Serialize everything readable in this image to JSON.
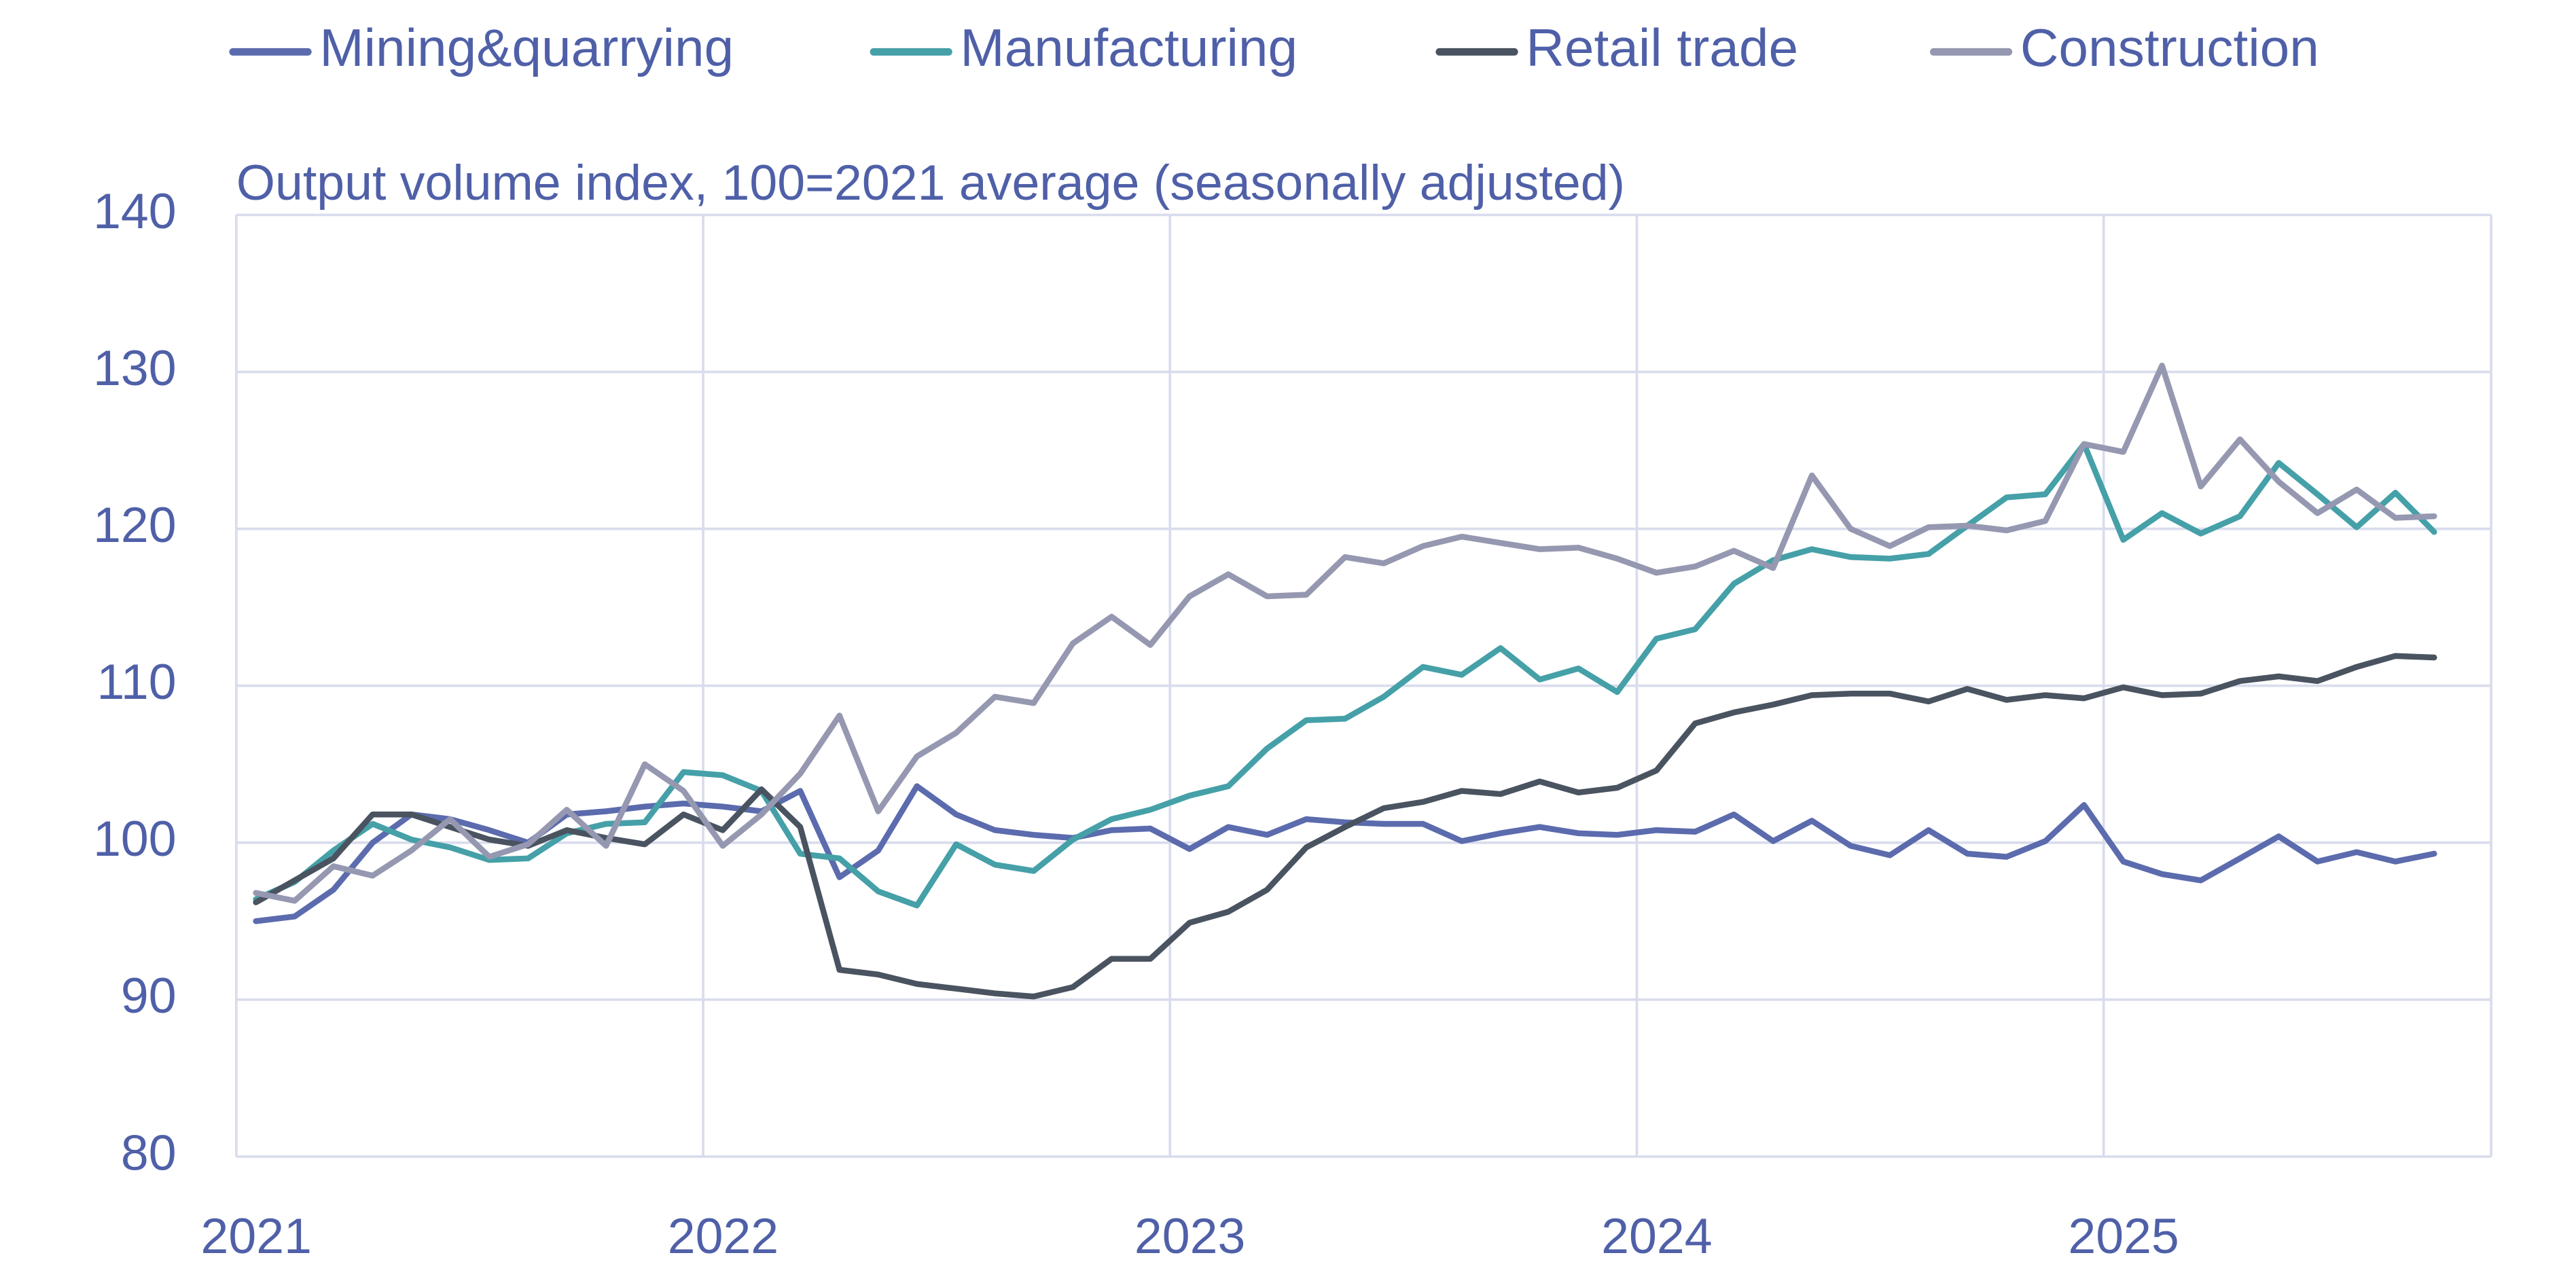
{
  "chart_data": {
    "type": "line",
    "subtitle": "Output volume index, 100=2021 average (seasonally adjusted)",
    "x": [
      2021.042,
      2021.125,
      2021.208,
      2021.292,
      2021.375,
      2021.458,
      2021.542,
      2021.625,
      2021.708,
      2021.792,
      2021.875,
      2021.958,
      2022.042,
      2022.125,
      2022.208,
      2022.292,
      2022.375,
      2022.458,
      2022.542,
      2022.625,
      2022.708,
      2022.792,
      2022.875,
      2022.958,
      2023.042,
      2023.125,
      2023.208,
      2023.292,
      2023.375,
      2023.458,
      2023.542,
      2023.625,
      2023.708,
      2023.792,
      2023.875,
      2023.958,
      2024.042,
      2024.125,
      2024.208,
      2024.292,
      2024.375,
      2024.458,
      2024.542,
      2024.625,
      2024.708,
      2024.792,
      2024.875,
      2024.958,
      2025.042,
      2025.125,
      2025.208,
      2025.292,
      2025.375,
      2025.458,
      2025.542,
      2025.625,
      2025.708
    ],
    "series": [
      {
        "name": "Mining&quarrying",
        "color": "#5b6bad",
        "values": [
          95.0,
          95.3,
          97.0,
          100.0,
          101.8,
          101.5,
          100.8,
          100.0,
          101.8,
          102.0,
          102.3,
          102.5,
          102.3,
          102.0,
          103.3,
          97.8,
          99.5,
          103.6,
          101.8,
          100.8,
          100.5,
          100.3,
          100.8,
          100.9,
          99.6,
          101.0,
          100.5,
          101.5,
          101.3,
          101.2,
          101.2,
          100.1,
          100.6,
          101.0,
          100.6,
          100.5,
          100.8,
          100.7,
          101.8,
          100.1,
          101.4,
          99.8,
          99.2,
          100.8,
          99.3,
          99.1,
          100.1,
          102.4,
          98.8,
          98.0,
          97.6,
          99.0,
          100.4,
          98.8,
          99.4,
          98.8,
          99.3
        ]
      },
      {
        "name": "Manufacturing",
        "color": "#45a0a8",
        "values": [
          96.4,
          97.5,
          99.5,
          101.2,
          100.2,
          99.7,
          98.9,
          99.0,
          100.6,
          101.2,
          101.3,
          104.5,
          104.3,
          103.3,
          99.3,
          99.0,
          96.9,
          96.0,
          99.9,
          98.6,
          98.2,
          100.2,
          101.5,
          102.1,
          103.0,
          103.6,
          106.0,
          107.8,
          107.9,
          109.3,
          111.2,
          110.7,
          112.4,
          110.4,
          111.1,
          109.6,
          113.0,
          113.6,
          116.5,
          118.0,
          118.7,
          118.2,
          118.1,
          118.4,
          120.2,
          122.0,
          122.2,
          125.4,
          119.3,
          121.0,
          119.7,
          120.8,
          124.2,
          122.2,
          120.1,
          122.3,
          119.8
        ]
      },
      {
        "name": "Retail trade",
        "color": "#4a5360",
        "values": [
          96.2,
          97.6,
          99.0,
          101.8,
          101.8,
          101.0,
          100.2,
          99.8,
          100.8,
          100.3,
          99.9,
          101.8,
          100.8,
          103.4,
          101.0,
          91.9,
          91.6,
          91.0,
          90.7,
          90.4,
          90.2,
          90.8,
          92.6,
          92.6,
          94.9,
          95.6,
          97.0,
          99.7,
          101.0,
          102.2,
          102.6,
          103.3,
          103.1,
          103.9,
          103.2,
          103.5,
          104.6,
          107.6,
          108.3,
          108.8,
          109.4,
          109.5,
          109.5,
          109.0,
          109.8,
          109.1,
          109.4,
          109.2,
          109.9,
          109.4,
          109.5,
          110.3,
          110.6,
          110.3,
          111.2,
          111.9,
          111.8
        ]
      },
      {
        "name": "Construction",
        "color": "#9598b0",
        "values": [
          96.8,
          96.3,
          98.5,
          97.9,
          99.5,
          101.5,
          99.1,
          99.9,
          102.1,
          99.8,
          105.0,
          103.3,
          99.8,
          101.8,
          104.4,
          108.1,
          102.0,
          105.5,
          107.0,
          109.3,
          108.9,
          112.7,
          114.4,
          112.6,
          115.7,
          117.1,
          115.7,
          115.8,
          118.2,
          117.8,
          118.9,
          119.5,
          119.1,
          118.7,
          118.8,
          118.1,
          117.2,
          117.6,
          118.6,
          117.5,
          123.4,
          120.0,
          118.9,
          120.1,
          120.2,
          119.9,
          120.5,
          125.4,
          124.9,
          130.4,
          122.7,
          125.7,
          123.0,
          121.0,
          122.5,
          120.7,
          120.8
        ]
      }
    ],
    "xlim": [
      2021,
      2025.83
    ],
    "xticks": [
      2021,
      2022,
      2023,
      2024,
      2025
    ],
    "ylim": [
      80,
      140
    ],
    "yticks": [
      80,
      90,
      100,
      110,
      120,
      130,
      140
    ],
    "grid": true,
    "legend": "top"
  }
}
